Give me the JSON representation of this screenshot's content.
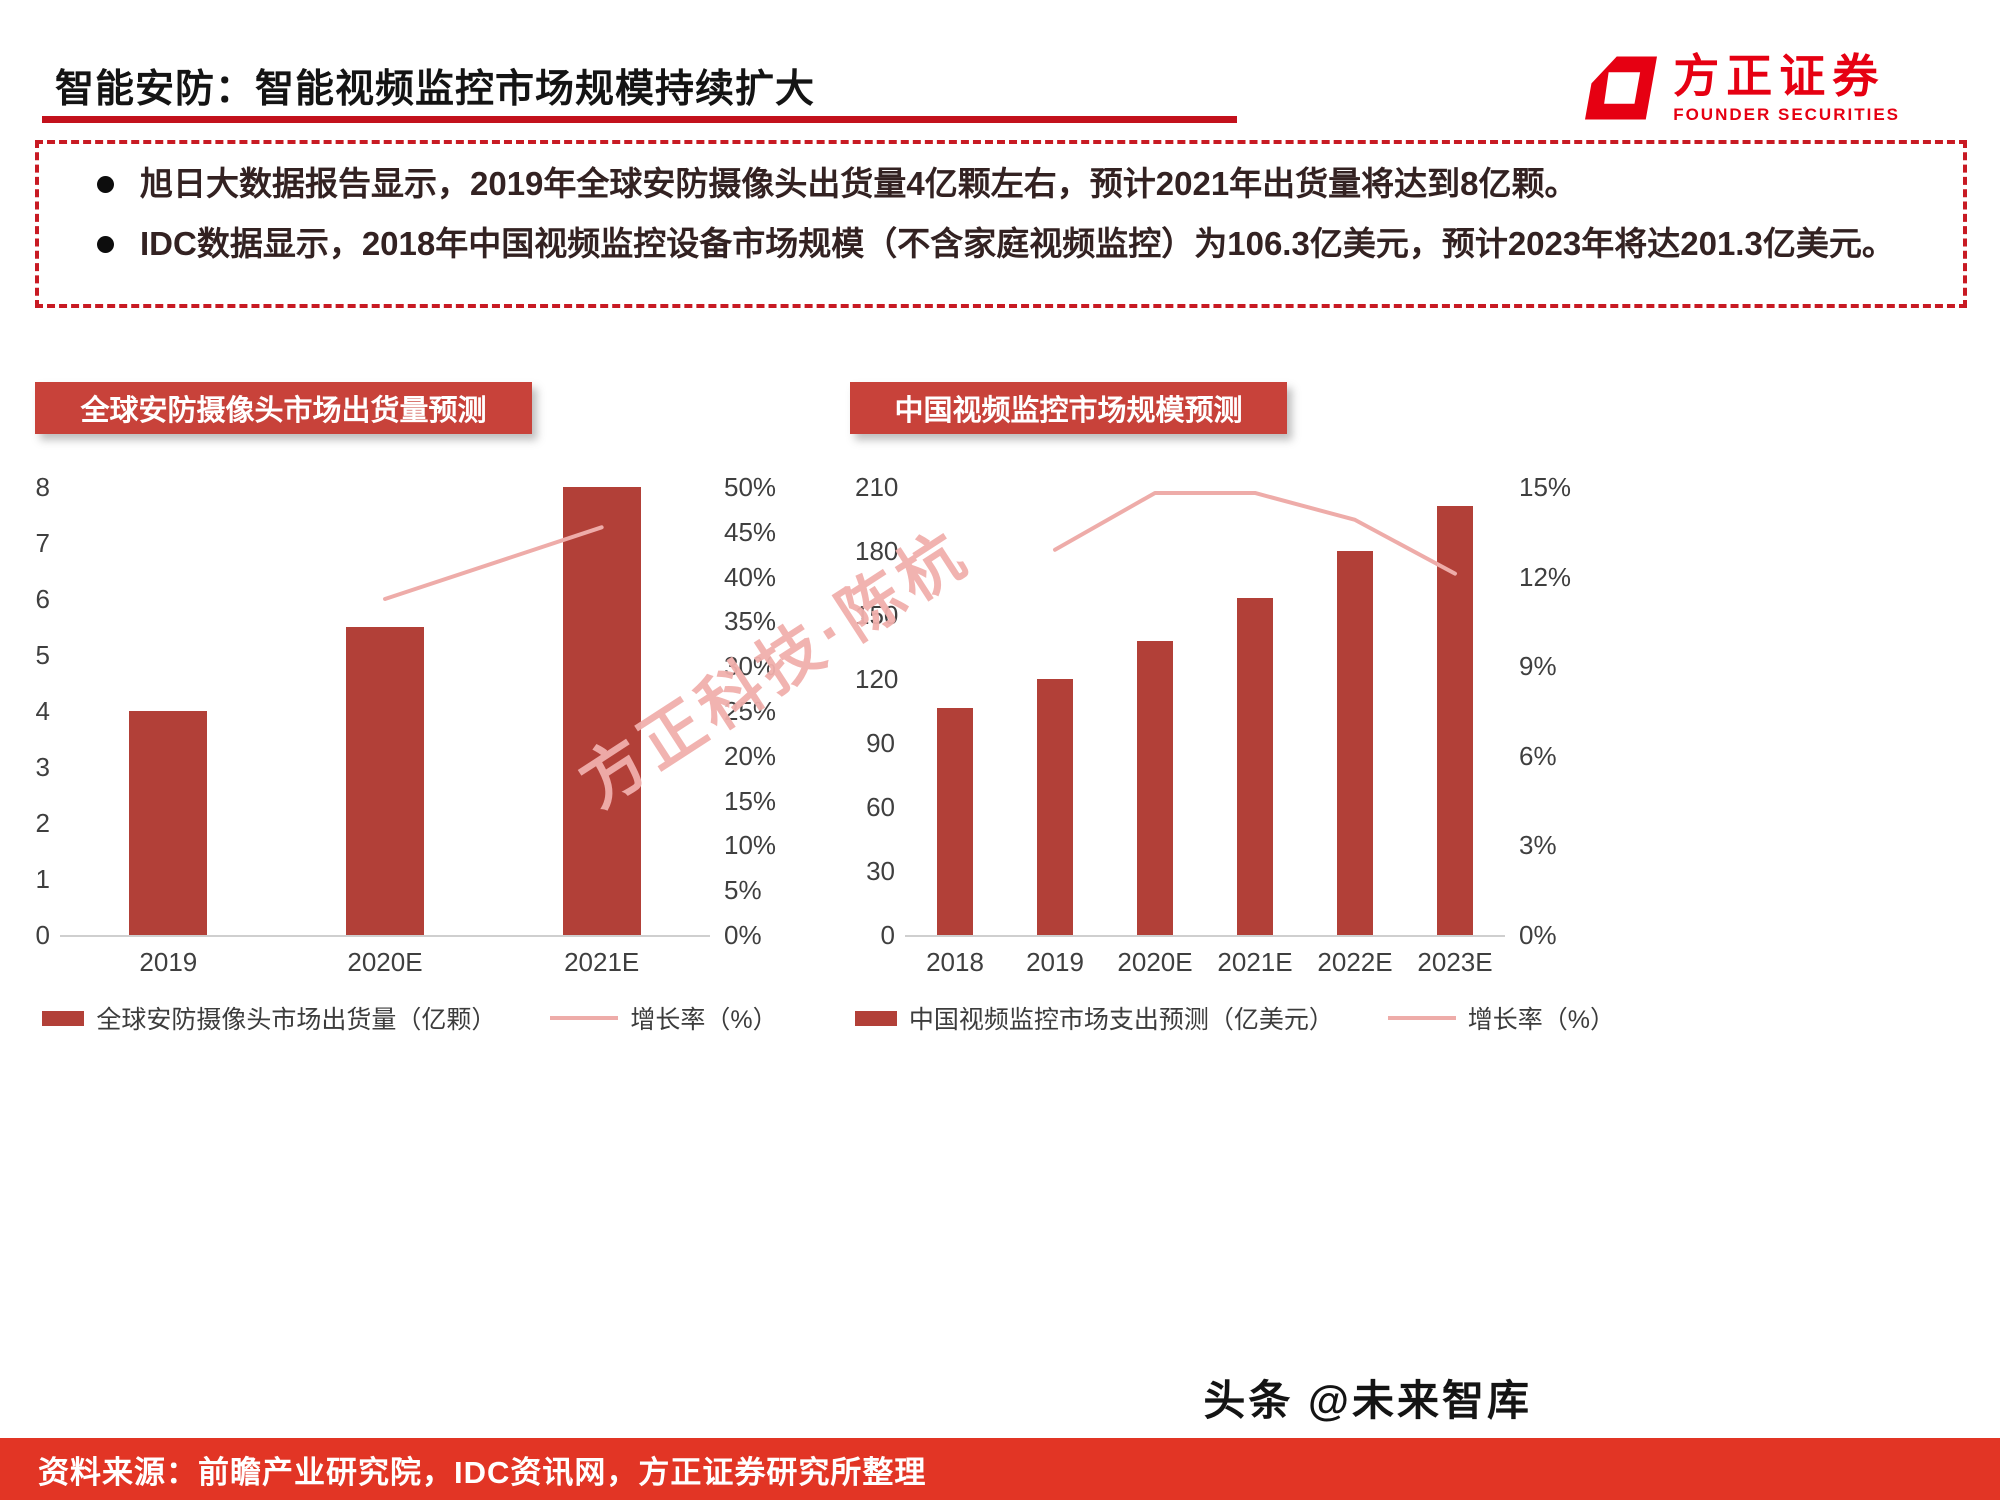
{
  "page": {
    "title": "智能安防：智能视频监控市场规模持续扩大"
  },
  "logo": {
    "name": "方正证券",
    "subname": "FOUNDER SECURITIES"
  },
  "summary_bullets": [
    {
      "text": "旭日大数据报告显示，2019年全球安防摄像头出货量4亿颗左右，预计2021年出货量将达到8亿颗。"
    },
    {
      "text": "IDC数据显示，2018年中国视频监控设备市场规模（不含家庭视频监控）为106.3亿美元，预计2023年将达201.3亿美元。"
    }
  ],
  "watermark": "方正科技·陈杭",
  "bottom": {
    "credit": "头条 @未来智库",
    "source": "资料来源：前瞻产业研究院，IDC资讯网，方正证券研究所整理"
  },
  "colors": {
    "founder_red": "#e60012",
    "badge_red": "#c8423a",
    "bar_red": "#b24038",
    "line_pink": "#eeaca9",
    "footer_red": "#e23525",
    "title_rule_red": "#c3111c",
    "dashed_border_red": "#c81a23",
    "watermark_pink": "rgba(240,175,172,0.95)",
    "body_text": "#332222"
  },
  "chart_data": [
    {
      "type": "bar",
      "title": "全球安防摄像头市场出货量预测",
      "categories": [
        "2019",
        "2020E",
        "2021E"
      ],
      "series": [
        {
          "name": "全球安防摄像头市场出货量（亿颗）",
          "kind": "bar",
          "axis": "left",
          "values": [
            4,
            5.5,
            8
          ]
        },
        {
          "name": "增长率（%）",
          "kind": "line",
          "axis": "right",
          "values": [
            null,
            37.5,
            45.5
          ]
        }
      ],
      "left_axis": {
        "min": 0,
        "max": 8,
        "ticks": [
          0,
          1,
          2,
          3,
          4,
          5,
          6,
          7,
          8
        ]
      },
      "right_axis": {
        "min": 0,
        "max": 50,
        "ticks": [
          "0%",
          "5%",
          "10%",
          "15%",
          "20%",
          "25%",
          "30%",
          "35%",
          "40%",
          "45%",
          "50%"
        ]
      },
      "legend_position": "bottom",
      "grid": false
    },
    {
      "type": "bar",
      "title": "中国视频监控市场规模预测",
      "categories": [
        "2018",
        "2019",
        "2020E",
        "2021E",
        "2022E",
        "2023E"
      ],
      "series": [
        {
          "name": "中国视频监控市场支出预测（亿美元）",
          "kind": "bar",
          "axis": "left",
          "values": [
            106.3,
            120,
            138,
            158,
            180,
            201.3
          ]
        },
        {
          "name": "增长率（%）",
          "kind": "line",
          "axis": "right",
          "values": [
            null,
            12.9,
            14.8,
            14.8,
            13.9,
            12.1
          ]
        }
      ],
      "left_axis": {
        "min": 0,
        "max": 210,
        "ticks": [
          0,
          30,
          60,
          90,
          120,
          150,
          180,
          210
        ]
      },
      "right_axis": {
        "min": 0,
        "max": 15,
        "ticks": [
          "0%",
          "3%",
          "6%",
          "9%",
          "12%",
          "15%"
        ]
      },
      "legend_position": "bottom",
      "grid": false
    }
  ]
}
